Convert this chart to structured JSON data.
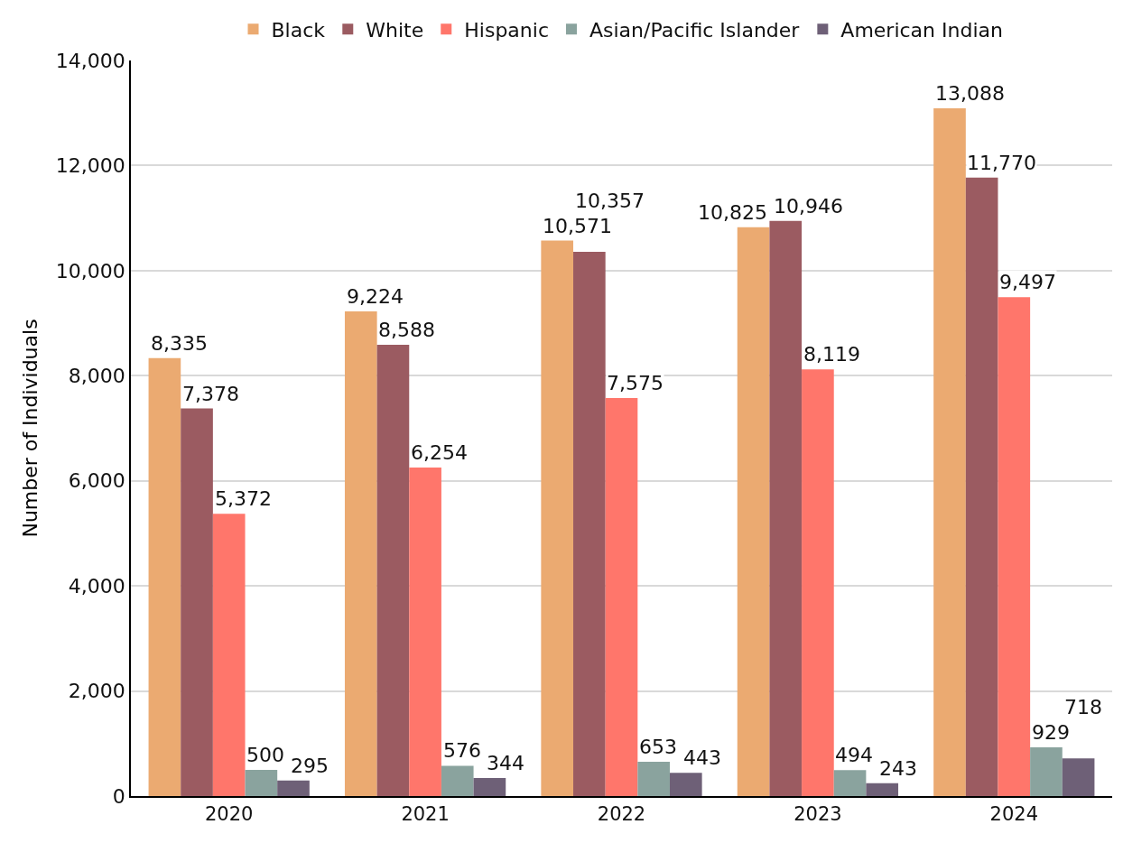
{
  "chart_data": {
    "type": "bar",
    "categories": [
      "2020",
      "2021",
      "2022",
      "2023",
      "2024"
    ],
    "ylabel": "Number of Individuals",
    "ylim": [
      0,
      14000
    ],
    "yticks": [
      0,
      {
        "value": 2000,
        "label": "2,000"
      },
      {
        "value": 4000,
        "label": "4,000"
      },
      {
        "value": 6000,
        "label": "6,000"
      },
      {
        "value": 8000,
        "label": "8,000"
      },
      {
        "value": 10000,
        "label": "10,000"
      },
      {
        "value": 12000,
        "label": "12,000"
      },
      {
        "value": 14000,
        "label": "14,000"
      }
    ],
    "grid": "y",
    "legend": "top",
    "series": [
      {
        "name": "Black",
        "color": "#ebaa71",
        "values": [
          8335,
          9224,
          10571,
          10825,
          13088
        ],
        "value_labels": [
          "8,335",
          "9,224",
          "10,571",
          "10,825",
          "13,088"
        ]
      },
      {
        "name": "White",
        "color": "#9b5b61",
        "values": [
          7378,
          8588,
          10357,
          10946,
          11770
        ],
        "value_labels": [
          "7,378",
          "8,588",
          "10,357",
          "10,946",
          "11,770"
        ]
      },
      {
        "name": "Hispanic",
        "color": "#ff766b",
        "values": [
          5372,
          6254,
          7575,
          8119,
          9497
        ],
        "value_labels": [
          "5,372",
          "6,254",
          "7,575",
          "8,119",
          "9,497"
        ]
      },
      {
        "name": "Asian/Pacific Islander",
        "color": "#8aa39e",
        "values": [
          500,
          576,
          653,
          494,
          929
        ],
        "value_labels": [
          "500",
          "576",
          "653",
          "494",
          "929"
        ]
      },
      {
        "name": "American Indian",
        "color": "#6e6077",
        "values": [
          295,
          344,
          443,
          243,
          718
        ],
        "value_labels": [
          "295",
          "344",
          "443",
          "243",
          "718"
        ]
      }
    ]
  }
}
